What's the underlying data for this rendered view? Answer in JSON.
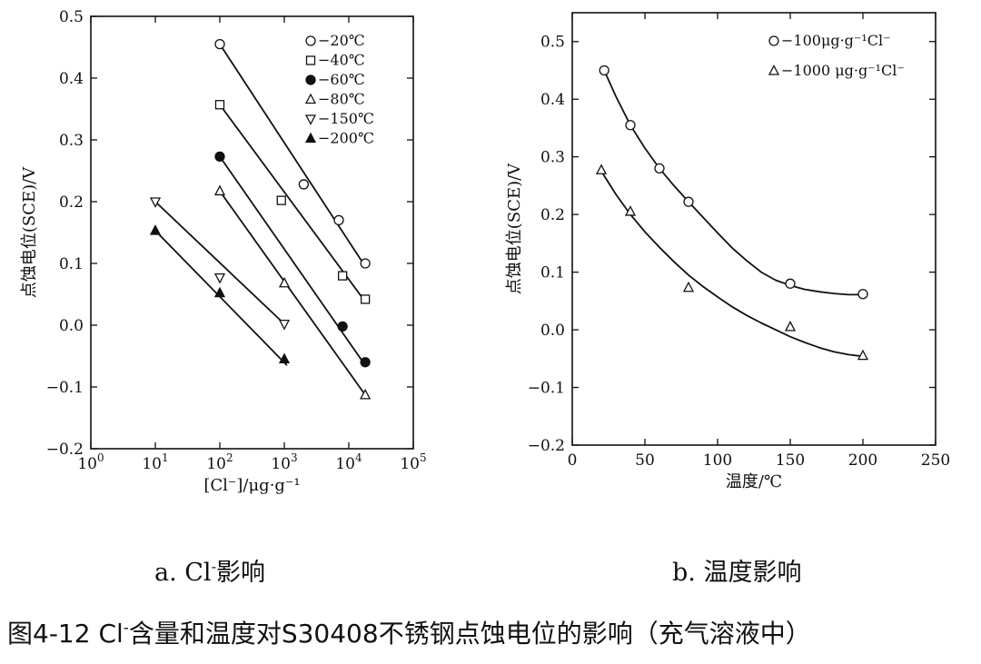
{
  "chart_data": [
    {
      "type": "line",
      "panel": "a",
      "xscale": "log",
      "xlim": [
        1,
        100000
      ],
      "ylim": [
        -0.2,
        0.5
      ],
      "xticks": [
        1,
        10,
        100,
        1000,
        10000,
        100000
      ],
      "xtick_labels": [
        "10^0",
        "10^1",
        "10^2",
        "10^3",
        "10^4",
        "10^5"
      ],
      "yticks": [
        -0.2,
        -0.1,
        0.0,
        0.1,
        0.2,
        0.3,
        0.4,
        0.5
      ],
      "ytick_labels": [
        "−0.2",
        "−0.1",
        "0.0",
        "0.1",
        "0.2",
        "0.3",
        "0.4",
        "0.5"
      ],
      "xlabel": "[Cl⁻]/μg·g⁻¹",
      "ylabel": "点蚀电位(SCE)/V",
      "legend_position": "top-right",
      "series": [
        {
          "name": "20℃",
          "label": "−20℃",
          "marker": "circle-open",
          "x": [
            100,
            2000,
            7000,
            18000
          ],
          "y": [
            0.455,
            0.228,
            0.17,
            0.1
          ],
          "fit_x": [
            100,
            18000
          ],
          "fit_y": [
            0.455,
            0.095
          ]
        },
        {
          "name": "40℃",
          "label": "−40℃",
          "marker": "square-open",
          "x": [
            100,
            900,
            8000,
            18000
          ],
          "y": [
            0.357,
            0.202,
            0.08,
            0.042
          ],
          "fit_x": [
            100,
            18000
          ],
          "fit_y": [
            0.357,
            0.038
          ]
        },
        {
          "name": "60℃",
          "label": "−60℃",
          "marker": "circle-filled",
          "x": [
            100,
            8000,
            18000
          ],
          "y": [
            0.273,
            -0.002,
            -0.06
          ],
          "fit_x": [
            100,
            18000
          ],
          "fit_y": [
            0.273,
            -0.065
          ]
        },
        {
          "name": "80℃",
          "label": "−80℃",
          "marker": "triangle-open",
          "x": [
            100,
            1000,
            18000
          ],
          "y": [
            0.217,
            0.068,
            -0.113
          ],
          "fit_x": [
            100,
            18000
          ],
          "fit_y": [
            0.217,
            -0.113
          ]
        },
        {
          "name": "150℃",
          "label": "−150℃",
          "marker": "triangle-down-open",
          "x": [
            10,
            100,
            1000
          ],
          "y": [
            0.2,
            0.077,
            0.002
          ],
          "fit_x": [
            10,
            1000
          ],
          "fit_y": [
            0.2,
            0.002
          ]
        },
        {
          "name": "200℃",
          "label": "−200℃",
          "marker": "triangle-filled",
          "x": [
            10,
            100,
            1000
          ],
          "y": [
            0.153,
            0.052,
            -0.055
          ],
          "fit_x": [
            10,
            1100
          ],
          "fit_y": [
            0.153,
            -0.065
          ]
        }
      ]
    },
    {
      "type": "line",
      "panel": "b",
      "xlim": [
        0,
        250
      ],
      "ylim": [
        -0.2,
        0.55
      ],
      "xticks": [
        0,
        50,
        100,
        150,
        200,
        250
      ],
      "xtick_labels": [
        "0",
        "50",
        "100",
        "150",
        "200",
        "250"
      ],
      "yticks": [
        -0.2,
        -0.1,
        0.0,
        0.1,
        0.2,
        0.3,
        0.4,
        0.5
      ],
      "ytick_labels": [
        "−0.2",
        "−0.1",
        "0.0",
        "0.1",
        "0.2",
        "0.3",
        "0.4",
        "0.5"
      ],
      "xlabel": "温度/℃",
      "ylabel": "点蚀电位(SCE)/V",
      "legend_position": "top-right",
      "series": [
        {
          "name": "100μg·g⁻¹Cl⁻",
          "label": "−100μg·g⁻¹Cl⁻",
          "marker": "circle-open",
          "x": [
            22,
            40,
            60,
            80,
            150,
            200
          ],
          "y": [
            0.45,
            0.355,
            0.28,
            0.222,
            0.08,
            0.062
          ],
          "curve_x": [
            22,
            30,
            40,
            50,
            60,
            70,
            80,
            90,
            100,
            110,
            120,
            130,
            140,
            150,
            160,
            170,
            180,
            190,
            200
          ],
          "curve_y": [
            0.45,
            0.405,
            0.355,
            0.315,
            0.28,
            0.25,
            0.222,
            0.195,
            0.168,
            0.142,
            0.12,
            0.1,
            0.086,
            0.077,
            0.07,
            0.066,
            0.063,
            0.061,
            0.061
          ]
        },
        {
          "name": "1000μg·g⁻¹Cl⁻",
          "label": "−1000 μg·g⁻¹Cl⁻",
          "marker": "triangle-open",
          "x": [
            20,
            40,
            80,
            150,
            200
          ],
          "y": [
            0.277,
            0.205,
            0.073,
            0.005,
            -0.045
          ],
          "curve_x": [
            20,
            30,
            40,
            50,
            60,
            70,
            80,
            90,
            100,
            110,
            120,
            130,
            140,
            150,
            160,
            170,
            180,
            190,
            200
          ],
          "curve_y": [
            0.275,
            0.235,
            0.2,
            0.17,
            0.143,
            0.118,
            0.095,
            0.075,
            0.057,
            0.04,
            0.025,
            0.012,
            0.0,
            -0.012,
            -0.022,
            -0.031,
            -0.038,
            -0.043,
            -0.046
          ]
        }
      ]
    }
  ],
  "captions": {
    "sub_a_prefix": "a. Cl",
    "sub_a_suffix": "影响",
    "sub_b": "b. 温度影响",
    "main_prefix": "图4-12  Cl",
    "main_suffix": "含量和温度对S30408不锈钢点蚀电位的影响（充气溶液中）",
    "minus_sup": "-"
  }
}
